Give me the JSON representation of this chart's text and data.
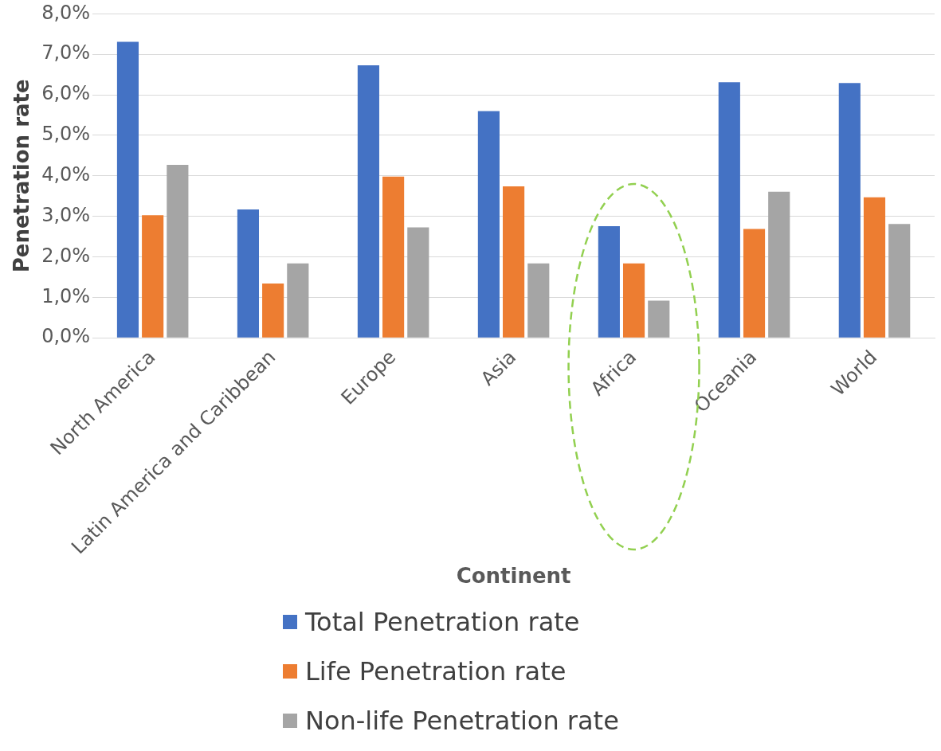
{
  "chart_data": {
    "type": "bar",
    "xlabel": "Continent",
    "ylabel": "Penetration rate",
    "categories": [
      "North America",
      "Latin America and Caribbean",
      "Europe",
      "Asia",
      "Africa",
      "Oceania",
      "World"
    ],
    "series": [
      {
        "name": "Total Penetration rate",
        "color": "#4472c4",
        "values": [
          7.31,
          3.17,
          6.73,
          5.6,
          2.76,
          6.31,
          6.29
        ]
      },
      {
        "name": "Life Penetration rate",
        "color": "#ed7d31",
        "values": [
          3.03,
          1.34,
          3.98,
          3.74,
          1.84,
          2.69,
          3.47
        ]
      },
      {
        "name": "Non-life Penetration rate",
        "color": "#a5a5a5",
        "values": [
          4.27,
          1.84,
          2.73,
          1.84,
          0.92,
          3.61,
          2.81
        ]
      }
    ],
    "ylim": [
      0,
      8
    ],
    "yticks": [
      {
        "value": 0,
        "label": "0,0%"
      },
      {
        "value": 1,
        "label": "1,0%"
      },
      {
        "value": 2,
        "label": "2,0%"
      },
      {
        "value": 3,
        "label": "3,0%"
      },
      {
        "value": 4,
        "label": "4,0%"
      },
      {
        "value": 5,
        "label": "5,0%"
      },
      {
        "value": 6,
        "label": "6,0%"
      },
      {
        "value": 7,
        "label": "7,0%"
      },
      {
        "value": 8,
        "label": "8,0%"
      }
    ],
    "grid": "y",
    "legend": "bottom"
  }
}
